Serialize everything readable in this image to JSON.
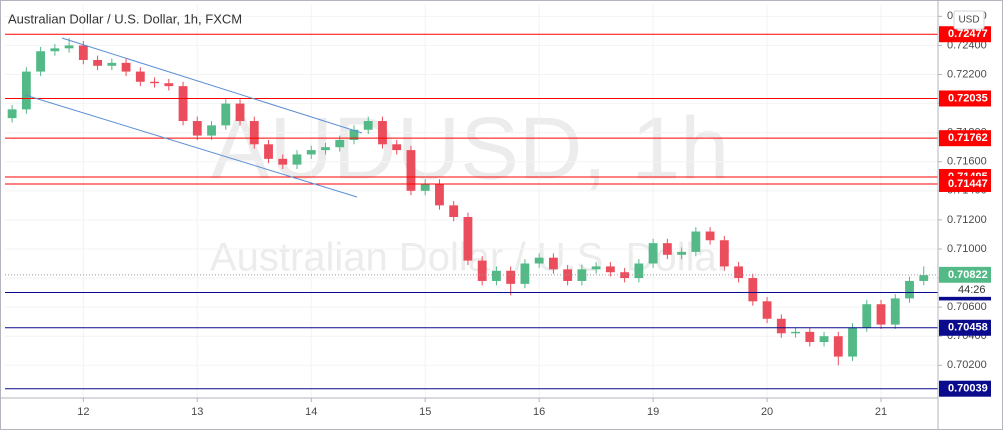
{
  "chart_data": {
    "type": "candlestick",
    "title": "Australian Dollar / U.S. Dollar, 1h, FXCM",
    "watermark": [
      "AUDUSD, 1h",
      "Australian Dollar / U.S. Dollar"
    ],
    "currency": "USD",
    "countdown": "44:26",
    "up_color": "#53b987",
    "down_color": "#eb4d5c",
    "open": [
      0.719,
      0.7196,
      0.7222,
      0.7236,
      0.7238,
      0.724,
      0.723,
      0.7226,
      0.7228,
      0.7222,
      0.7215,
      0.7214,
      0.7212,
      0.7188,
      0.7178,
      0.7185,
      0.72,
      0.7188,
      0.7172,
      0.7162,
      0.7158,
      0.7165,
      0.7168,
      0.717,
      0.7175,
      0.7182,
      0.7188,
      0.7172,
      0.7168,
      0.714,
      0.7145,
      0.713,
      0.7122,
      0.7092,
      0.7078,
      0.7085,
      0.7076,
      0.709,
      0.7094,
      0.7086,
      0.7078,
      0.7086,
      0.7088,
      0.7084,
      0.708,
      0.709,
      0.7104,
      0.7096,
      0.7098,
      0.7112,
      0.7106,
      0.7088,
      0.708,
      0.7064,
      0.7052,
      0.7042,
      0.7043,
      0.7036,
      0.704,
      0.7026,
      0.7046,
      0.7062,
      0.7048,
      0.7066,
      0.7078
    ],
    "high": [
      0.7199,
      0.7225,
      0.7239,
      0.7241,
      0.7245,
      0.7243,
      0.7233,
      0.7231,
      0.7231,
      0.7225,
      0.7218,
      0.7217,
      0.7215,
      0.7191,
      0.7188,
      0.7203,
      0.7203,
      0.7191,
      0.7175,
      0.7165,
      0.7168,
      0.7171,
      0.7173,
      0.7178,
      0.7185,
      0.7191,
      0.7191,
      0.7175,
      0.7171,
      0.7148,
      0.7148,
      0.7133,
      0.7125,
      0.7095,
      0.7088,
      0.7088,
      0.7093,
      0.7097,
      0.7097,
      0.7089,
      0.7089,
      0.7091,
      0.7091,
      0.7087,
      0.7093,
      0.7107,
      0.7107,
      0.7101,
      0.7115,
      0.7115,
      0.7109,
      0.7091,
      0.7083,
      0.7067,
      0.7055,
      0.7046,
      0.7046,
      0.7043,
      0.7043,
      0.7049,
      0.7065,
      0.7065,
      0.7069,
      0.7081,
      0.7088
    ],
    "low": [
      0.7187,
      0.7193,
      0.7219,
      0.7233,
      0.7235,
      0.7227,
      0.7223,
      0.7223,
      0.7219,
      0.7212,
      0.7211,
      0.7209,
      0.7185,
      0.7175,
      0.7175,
      0.7182,
      0.7185,
      0.7169,
      0.7159,
      0.7155,
      0.7155,
      0.7162,
      0.7165,
      0.7167,
      0.7172,
      0.7179,
      0.7169,
      0.7165,
      0.7137,
      0.7137,
      0.7127,
      0.7119,
      0.7089,
      0.7075,
      0.7075,
      0.7068,
      0.7073,
      0.7087,
      0.7083,
      0.7075,
      0.7075,
      0.7083,
      0.7081,
      0.7077,
      0.7077,
      0.7087,
      0.7093,
      0.7093,
      0.7095,
      0.7103,
      0.7085,
      0.7077,
      0.7061,
      0.7049,
      0.7039,
      0.7039,
      0.7033,
      0.7033,
      0.702,
      0.7023,
      0.7043,
      0.7045,
      0.7045,
      0.7063,
      0.7075
    ],
    "close": [
      0.7196,
      0.7222,
      0.7236,
      0.7238,
      0.724,
      0.723,
      0.7226,
      0.7228,
      0.7222,
      0.7215,
      0.7214,
      0.7212,
      0.7188,
      0.7178,
      0.7185,
      0.72,
      0.7188,
      0.7172,
      0.7162,
      0.7158,
      0.7165,
      0.7168,
      0.717,
      0.7175,
      0.7182,
      0.7188,
      0.7172,
      0.7168,
      0.714,
      0.7145,
      0.713,
      0.7122,
      0.7092,
      0.7078,
      0.7085,
      0.7076,
      0.709,
      0.7094,
      0.7086,
      0.7078,
      0.7086,
      0.7088,
      0.7084,
      0.708,
      0.709,
      0.7104,
      0.7096,
      0.7098,
      0.7112,
      0.7106,
      0.7088,
      0.708,
      0.7064,
      0.7052,
      0.7042,
      0.7043,
      0.7036,
      0.704,
      0.7026,
      0.7046,
      0.7062,
      0.7048,
      0.7066,
      0.7078,
      0.7082
    ],
    "xlim": [
      -0.5,
      65
    ],
    "xticks": [
      {
        "value": 5,
        "label": "12"
      },
      {
        "value": 13,
        "label": "13"
      },
      {
        "value": 21,
        "label": "14"
      },
      {
        "value": 29,
        "label": "15"
      },
      {
        "value": 37,
        "label": "16"
      },
      {
        "value": 45,
        "label": "19"
      },
      {
        "value": 53,
        "label": "20"
      },
      {
        "value": 61,
        "label": "21"
      }
    ],
    "ylim": [
      0.69975,
      0.72678
    ],
    "yticks": [
      {
        "value": 0.726,
        "label": "0.72600"
      },
      {
        "value": 0.724,
        "label": "0.72400"
      },
      {
        "value": 0.722,
        "label": "0.72200"
      },
      {
        "value": 0.72,
        "label": "0.72000"
      },
      {
        "value": 0.718,
        "label": "0.71800"
      },
      {
        "value": 0.716,
        "label": "0.71600"
      },
      {
        "value": 0.714,
        "label": "0.71400"
      },
      {
        "value": 0.712,
        "label": "0.71200"
      },
      {
        "value": 0.71,
        "label": "0.71000"
      },
      {
        "value": 0.708,
        "label": "0.70800"
      },
      {
        "value": 0.706,
        "label": "0.70600"
      },
      {
        "value": 0.704,
        "label": "0.70400"
      },
      {
        "value": 0.702,
        "label": "0.70200"
      },
      {
        "value": 0.7,
        "label": "0.70000"
      }
    ],
    "levels": [
      {
        "value": 0.72477,
        "color": "#ff0000"
      },
      {
        "value": 0.72035,
        "color": "#ff0000"
      },
      {
        "value": 0.71762,
        "color": "#ff0000"
      },
      {
        "value": 0.71495,
        "color": "#ff0000"
      },
      {
        "value": 0.71447,
        "color": "#ff0000"
      },
      {
        "value": 0.70701,
        "color": "#0a0a8c"
      },
      {
        "value": 0.70458,
        "color": "#0a0a8c"
      },
      {
        "value": 0.70039,
        "color": "#0a0a8c"
      }
    ],
    "last_price": 0.70822
  }
}
